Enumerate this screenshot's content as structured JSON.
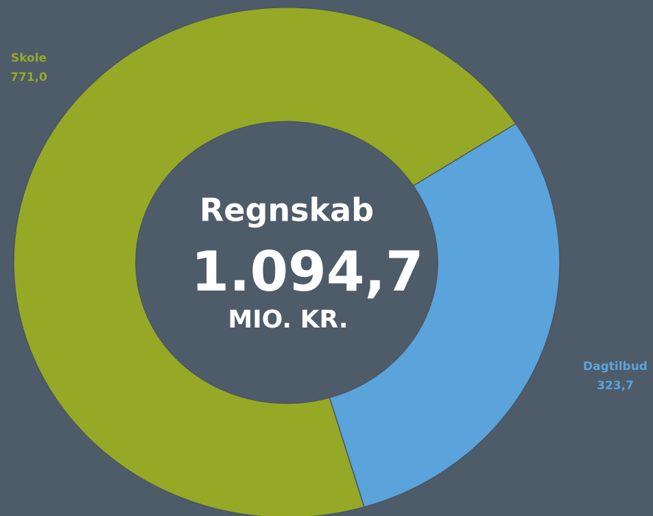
{
  "chart_data": {
    "type": "donut",
    "categories": [
      "Skole",
      "Dagtilbud"
    ],
    "values": [
      771.0,
      323.7
    ],
    "value_labels": [
      "771,0",
      "323,7"
    ],
    "colors": [
      "#95a926",
      "#5ba3db"
    ],
    "annotations": [
      "Regnskab",
      "1.094,7",
      "MIO. KR."
    ]
  }
}
